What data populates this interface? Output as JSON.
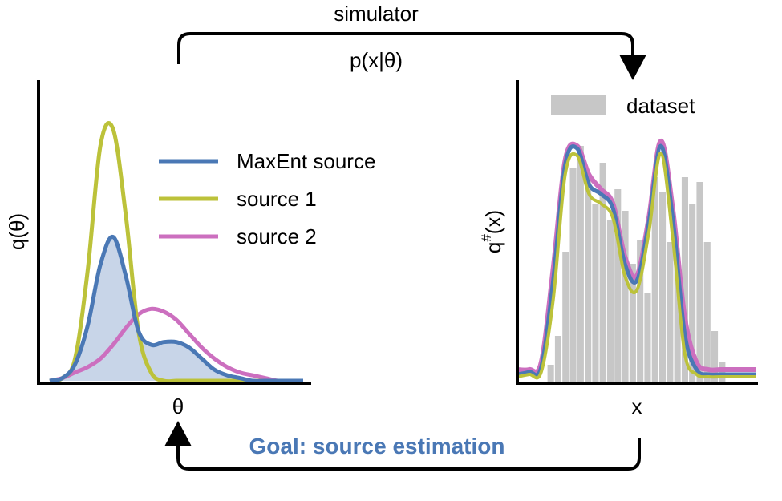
{
  "top_arrow": {
    "label_line1": "simulator",
    "label_line2": "p(x|θ)"
  },
  "bottom_arrow": {
    "label": "Goal: source estimation"
  },
  "colors": {
    "maxent": "#4a78b5",
    "source1": "#bcc23a",
    "source2": "#cc6fbf",
    "dataset": "#c7c7c7",
    "fill": "#c8d5e8",
    "goal_text": "#4a78b5",
    "axis": "#000000"
  },
  "chart_data": [
    {
      "type": "line",
      "title": "",
      "xlabel": "θ",
      "ylabel": "q(θ)",
      "xlim": [
        0,
        10
      ],
      "ylim": [
        0,
        1
      ],
      "grid": false,
      "legend": {
        "placement": "top-right",
        "entries": [
          "MaxEnt source",
          "source 1",
          "source 2"
        ]
      },
      "x": [
        0,
        0.5,
        1,
        1.5,
        2,
        2.5,
        3,
        3.5,
        4,
        4.5,
        5,
        5.5,
        6,
        6.5,
        7,
        7.5,
        8,
        8.5,
        9,
        9.5,
        10
      ],
      "series": [
        {
          "name": "MaxEnt source",
          "color_key": "maxent",
          "filled": true,
          "values": [
            0,
            0.01,
            0.06,
            0.2,
            0.42,
            0.52,
            0.38,
            0.18,
            0.13,
            0.14,
            0.14,
            0.12,
            0.08,
            0.04,
            0.02,
            0.01,
            0,
            0,
            0,
            0,
            0
          ]
        },
        {
          "name": "source 1",
          "color_key": "source1",
          "filled": false,
          "values": [
            0,
            0.01,
            0.08,
            0.4,
            0.85,
            0.91,
            0.6,
            0.18,
            0.03,
            0,
            0,
            0,
            0,
            0,
            0,
            0,
            0,
            0,
            0,
            0,
            0
          ]
        },
        {
          "name": "source 2",
          "color_key": "source2",
          "filled": false,
          "values": [
            0,
            0.01,
            0.03,
            0.05,
            0.08,
            0.13,
            0.19,
            0.24,
            0.26,
            0.25,
            0.22,
            0.17,
            0.12,
            0.08,
            0.05,
            0.03,
            0.02,
            0.01,
            0,
            0,
            0
          ]
        }
      ]
    },
    {
      "type": "bar",
      "title": "",
      "xlabel": "x",
      "ylabel": "q#(x)",
      "ylabel_main": "q",
      "ylabel_superscript": "#",
      "ylabel_arg": "(x)",
      "ylim": [
        0,
        1
      ],
      "grid": false,
      "legend": {
        "placement": "top-right",
        "entries": [
          "dataset"
        ]
      },
      "histogram": {
        "name": "dataset",
        "values": [
          0.05,
          0.17,
          0.52,
          0.87,
          0.96,
          0.84,
          0.72,
          0.89,
          0.65,
          0.78,
          0.69,
          0.47,
          0.57,
          0.35,
          0.83,
          0.77,
          0.56,
          0.45,
          0.83,
          0.72,
          0.81,
          0.56,
          0.19,
          0.06
        ]
      },
      "x": [
        0,
        0.5,
        1,
        1.5,
        2,
        2.5,
        3,
        3.5,
        4,
        4.5,
        5,
        5.5,
        6,
        6.5,
        7,
        7.5,
        8,
        8.5,
        9,
        9.5,
        10
      ],
      "series": [
        {
          "name": "source 2",
          "color_key": "source2",
          "values": [
            0.03,
            0.03,
            0.06,
            0.45,
            0.9,
            0.96,
            0.84,
            0.78,
            0.72,
            0.5,
            0.42,
            0.66,
            0.98,
            0.7,
            0.25,
            0.06,
            0.03,
            0.03,
            0.03,
            0.03,
            0.03
          ]
        },
        {
          "name": "MaxEnt source",
          "color_key": "maxent",
          "values": [
            0.01,
            0.02,
            0.04,
            0.4,
            0.88,
            0.95,
            0.8,
            0.76,
            0.7,
            0.47,
            0.4,
            0.64,
            0.96,
            0.66,
            0.18,
            0.03,
            0.01,
            0.01,
            0.01,
            0.01,
            0.01
          ]
        },
        {
          "name": "source 1",
          "color_key": "source1",
          "values": [
            0,
            0.01,
            0.02,
            0.32,
            0.84,
            0.92,
            0.76,
            0.72,
            0.66,
            0.42,
            0.36,
            0.6,
            0.93,
            0.58,
            0.1,
            0.01,
            0,
            0,
            0,
            0,
            0
          ]
        }
      ]
    }
  ]
}
